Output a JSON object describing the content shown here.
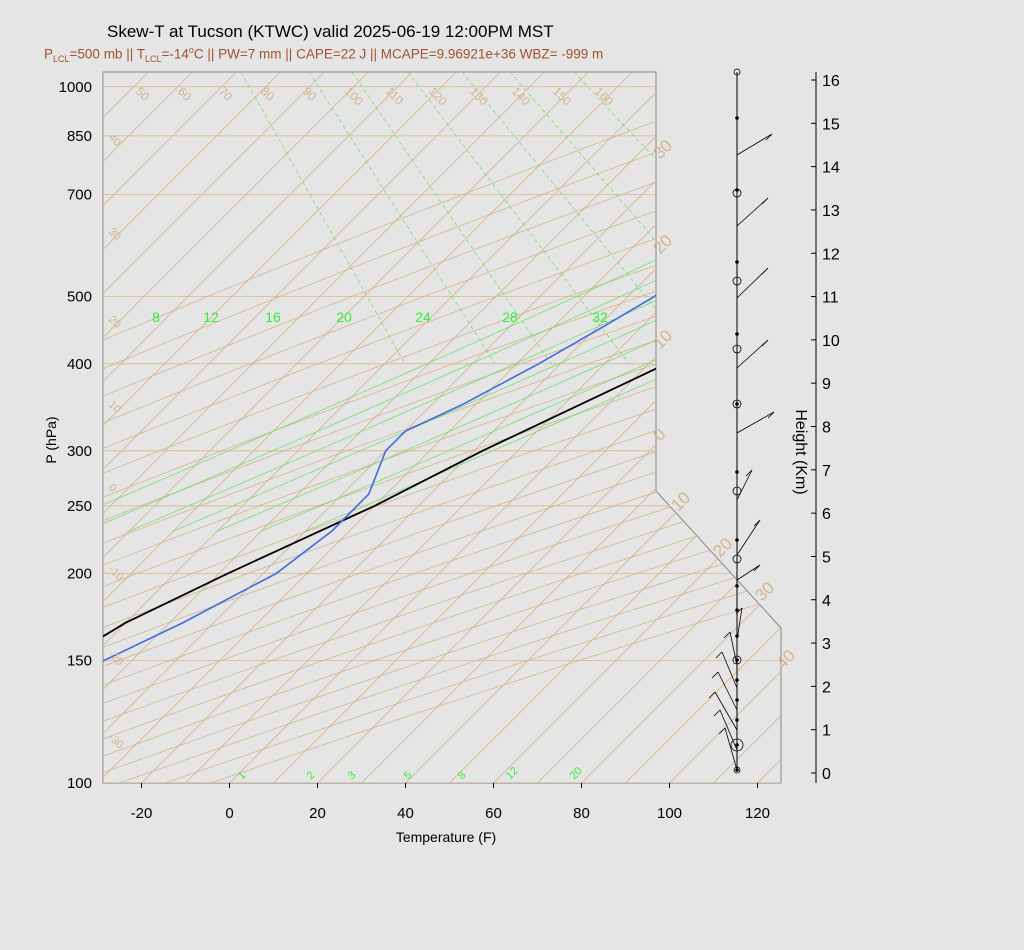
{
  "title": "Skew-T at Tucson (KTWC) valid 2025-06-19 12:00PM MST",
  "subtitle": {
    "lcl_p_label": "P",
    "lcl_p_sub": "LCL",
    "lcl_p_value": "=500 mb || ",
    "lcl_t_label": "T",
    "lcl_t_sub": "LCL",
    "lcl_t_value": "=-14",
    "deg_sup": "o",
    "rest": "C || PW=7 mm || CAPE=22 J || MCAPE=9.96921e+36 WBZ= -999 m"
  },
  "colors": {
    "temperature": "#000000",
    "dewpoint": "#4169e1",
    "parcel": "#e03030",
    "isotherm": "#d2b48c",
    "isobar": "#deb887",
    "mixing_ratio": "#66dd66",
    "mixing_label": "#33ee33",
    "title_sub": "#a0522d"
  },
  "chart_data": {
    "type": "skew-t",
    "xlabel": "Temperature (F)",
    "ylabel": "P (hPa)",
    "y2label": "Height (Km)",
    "xlim": [
      -28,
      125
    ],
    "ylim": [
      1050,
      100
    ],
    "x_ticks": [
      "-20",
      "0",
      "20",
      "40",
      "60",
      "80",
      "100",
      "120"
    ],
    "y_ticks": [
      "100",
      "150",
      "200",
      "250",
      "300",
      "400",
      "500",
      "700",
      "850",
      "1000"
    ],
    "height_ticks": [
      "0",
      "1",
      "2",
      "3",
      "4",
      "5",
      "6",
      "7",
      "8",
      "9",
      "10",
      "11",
      "12",
      "13",
      "14",
      "15",
      "16"
    ],
    "isotherm_labels_top": [
      "50",
      "60",
      "70",
      "80",
      "90",
      "100",
      "110",
      "120",
      "130",
      "140",
      "150",
      "160"
    ],
    "isotherm_labels_left": [
      "40",
      "30",
      "20",
      "10",
      "0",
      "-10",
      "-20",
      "-30"
    ],
    "isotherm_labels_right": [
      "30",
      "20",
      "10",
      "0",
      "10",
      "20",
      "30",
      "40"
    ],
    "moist_adiabat_labels": [
      "8",
      "12",
      "16",
      "20",
      "24",
      "28",
      "32"
    ],
    "mixing_ratio_labels": [
      "1",
      "2",
      "3",
      "5",
      "8",
      "12",
      "20"
    ],
    "temperature": {
      "p": [
        990,
        960,
        950,
        930,
        900,
        850,
        800,
        700,
        600,
        500,
        400,
        300,
        250,
        200,
        170,
        130,
        100
      ],
      "t": [
        114,
        110,
        108,
        103,
        97,
        88,
        79,
        62,
        44,
        24,
        4,
        -18,
        -30,
        -48,
        -60,
        -72,
        -66
      ]
    },
    "dewpoint": {
      "p": [
        925,
        850,
        780,
        770,
        700,
        650,
        600,
        570,
        530,
        500,
        450,
        400,
        350,
        320,
        300,
        260,
        230,
        200,
        170,
        130
      ],
      "td": [
        9,
        14,
        19,
        18,
        -17,
        -18,
        -18,
        -15,
        -13,
        -14,
        -19,
        -25,
        -33,
        -40,
        -40,
        -34,
        -34,
        -37,
        -47,
        -67
      ]
    },
    "parcel": {
      "p": [
        930,
        900,
        850,
        800,
        740
      ],
      "t": [
        104,
        97,
        88,
        79,
        68
      ]
    }
  }
}
